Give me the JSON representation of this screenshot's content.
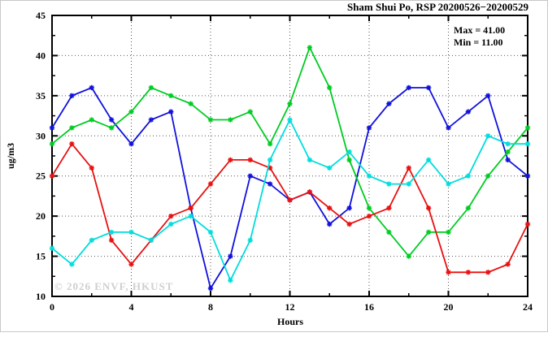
{
  "title": "Sham Shui Po, RSP 20200526−20200529",
  "annotation": {
    "max_label": "Max = 41.00",
    "min_label": "Min = 11.00"
  },
  "watermark": "© 2026 ENVF, HKUST",
  "chart_data": {
    "type": "line",
    "title": "Sham Shui Po, RSP 20200526−20200529",
    "xlabel": "Hours",
    "ylabel": "ug/m3",
    "xlim": [
      0,
      24
    ],
    "ylim": [
      10,
      45
    ],
    "grid": true,
    "legend_position": "none",
    "x_major_ticks": [
      0,
      4,
      8,
      12,
      16,
      20,
      24
    ],
    "x_minor_step": 2,
    "y_major_ticks": [
      10,
      15,
      20,
      25,
      30,
      35,
      40,
      45
    ],
    "y_minor_step": 2.5,
    "max_value": 41.0,
    "min_value": 11.0,
    "x": [
      0,
      1,
      2,
      3,
      4,
      5,
      6,
      7,
      8,
      9,
      10,
      11,
      12,
      13,
      14,
      15,
      16,
      17,
      18,
      19,
      20,
      21,
      22,
      23,
      24
    ],
    "series": [
      {
        "name": "series-blue",
        "color": "#1010dd",
        "values": [
          31,
          35,
          36,
          32,
          29,
          32,
          33,
          21,
          11,
          15,
          25,
          24,
          22,
          23,
          19,
          21,
          31,
          34,
          36,
          36,
          31,
          33,
          35,
          27,
          25
        ]
      },
      {
        "name": "series-green",
        "color": "#00cc22",
        "values": [
          29,
          31,
          32,
          31,
          33,
          36,
          35,
          34,
          32,
          32,
          33,
          29,
          34,
          41,
          36,
          27,
          21,
          18,
          15,
          18,
          18,
          21,
          25,
          28,
          31
        ]
      },
      {
        "name": "series-red",
        "color": "#e81010",
        "values": [
          25,
          29,
          26,
          17,
          14,
          17,
          20,
          21,
          24,
          27,
          27,
          26,
          22,
          23,
          21,
          19,
          20,
          21,
          26,
          21,
          13,
          13,
          13,
          14,
          19
        ]
      },
      {
        "name": "series-cyan",
        "color": "#00dddd",
        "values": [
          16,
          14,
          17,
          18,
          18,
          17,
          19,
          20,
          18,
          12,
          17,
          27,
          32,
          27,
          26,
          28,
          25,
          24,
          24,
          27,
          24,
          25,
          30,
          29,
          29
        ]
      }
    ]
  }
}
